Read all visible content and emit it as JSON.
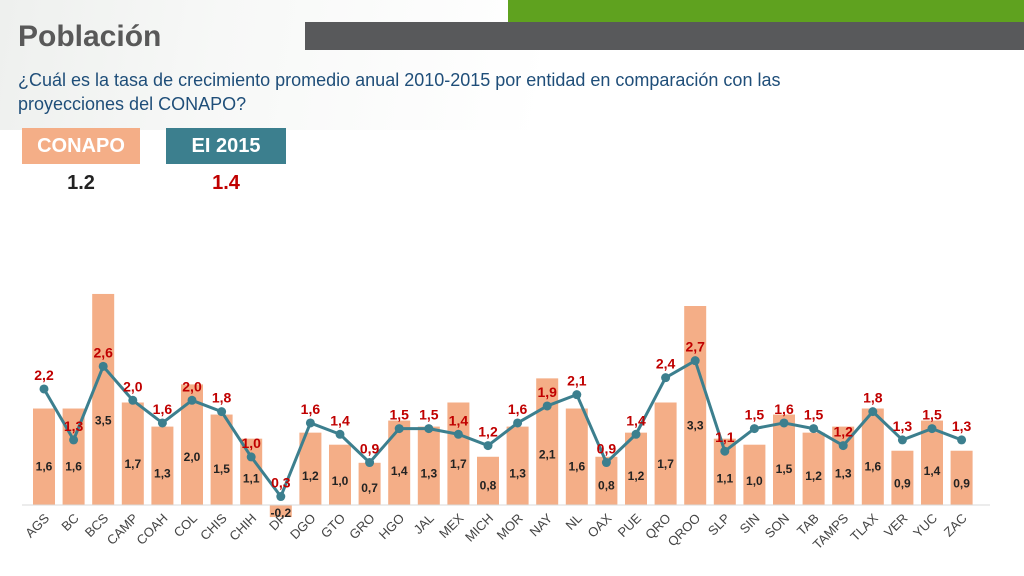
{
  "header": {
    "title": "Población",
    "subtitle": "¿Cuál es la tasa de crecimiento promedio anual 2010-2015 por entidad en comparación con las proyecciones del CONAPO?"
  },
  "badges": {
    "conapo_label": "CONAPO",
    "conapo_value": "1.2",
    "inegi_label": "EI 2015",
    "inegi_value": "1.4"
  },
  "colors": {
    "bar": "#f4ae87",
    "line": "#3c7f8e",
    "line_label": "#c00000",
    "accent_green": "#5fa21f",
    "header_gray": "#58595b"
  },
  "chart_data": {
    "type": "bar",
    "categories": [
      "AGS",
      "BC",
      "BCS",
      "CAMP",
      "COAH",
      "COL",
      "CHIS",
      "CHIH",
      "DF",
      "DGO",
      "GTO",
      "GRO",
      "HGO",
      "JAL",
      "MEX",
      "MICH",
      "MOR",
      "NAY",
      "NL",
      "OAX",
      "PUE",
      "QRO",
      "QROO",
      "SLP",
      "SIN",
      "SON",
      "TAB",
      "TAMPS",
      "TLAX",
      "VER",
      "YUC",
      "ZAC"
    ],
    "series": [
      {
        "name": "CONAPO",
        "type": "bar",
        "values": [
          1.6,
          1.6,
          3.5,
          1.7,
          1.3,
          2.0,
          1.5,
          1.1,
          -0.2,
          1.2,
          1.0,
          0.7,
          1.4,
          1.3,
          1.7,
          0.8,
          1.3,
          2.1,
          1.6,
          0.8,
          1.2,
          1.7,
          3.3,
          1.1,
          1.0,
          1.5,
          1.2,
          1.3,
          1.6,
          0.9,
          1.4,
          0.9
        ],
        "labels": [
          "1,6",
          "1,6",
          "3,5",
          "1,7",
          "1,3",
          "2,0",
          "1,5",
          "1,1",
          "-0,2",
          "1,2",
          "1,0",
          "0,7",
          "1,4",
          "1,3",
          "1,7",
          "0,8",
          "1,3",
          "2,1",
          "1,6",
          "0,8",
          "1,2",
          "1,7",
          "3,3",
          "1,1",
          "1,0",
          "1,5",
          "1,2",
          "1,3",
          "1,6",
          "0,9",
          "1,4",
          "0,9"
        ]
      },
      {
        "name": "EI 2015",
        "type": "line",
        "values": [
          2.2,
          1.3,
          2.6,
          2.0,
          1.6,
          2.0,
          1.8,
          1.0,
          0.3,
          1.6,
          1.4,
          0.9,
          1.5,
          1.5,
          1.4,
          1.2,
          1.6,
          1.9,
          2.1,
          0.9,
          1.4,
          2.4,
          2.7,
          1.1,
          1.5,
          1.6,
          1.5,
          1.2,
          1.8,
          1.3,
          1.5,
          1.3
        ],
        "labels": [
          "2,2",
          "1,3",
          "2,6",
          "2,0",
          "1,6",
          "2,0",
          "1,8",
          "1,0",
          "0,3",
          "1,6",
          "1,4",
          "0,9",
          "1,5",
          "1,5",
          "1,4",
          "1,2",
          "1,6",
          "1,9",
          "2,1",
          "0,9",
          "1,4",
          "2,4",
          "2,7",
          "1,1",
          "1,5",
          "1,6",
          "1,5",
          "1,2",
          "1,8",
          "1,3",
          "1,5",
          "1,3"
        ]
      }
    ],
    "bar_ylim": [
      -0.5,
      3.6
    ],
    "line_ylim": [
      -1.4,
      3.6
    ],
    "grid": false,
    "legend": "none"
  }
}
